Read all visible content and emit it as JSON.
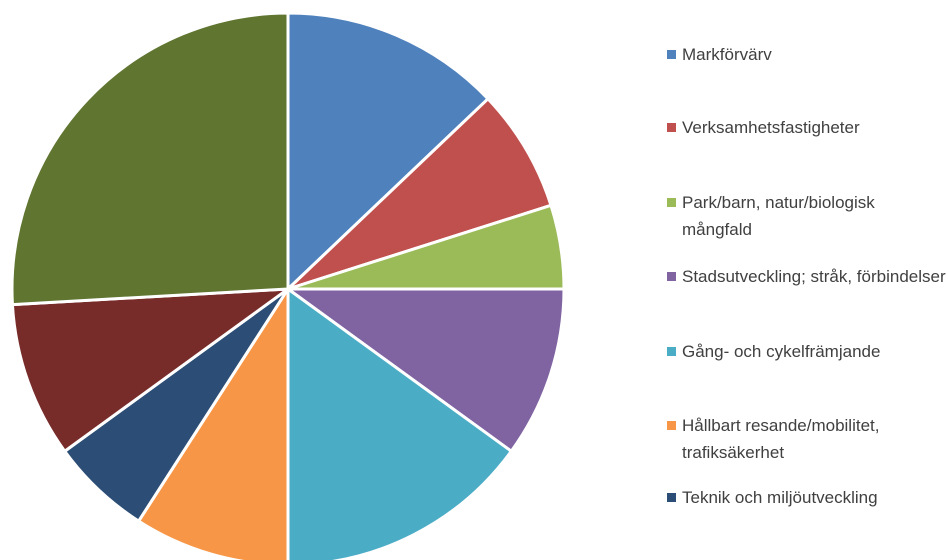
{
  "chart_data": {
    "type": "pie",
    "categories": [
      "Markförvärv",
      "Verksamhetsfastigheter",
      "Park/barn, natur/biologisk mångfald",
      "Stadsutveckling; stråk, förbindelser",
      "Gång- och cykelfrämjande",
      "Hållbart resande/mobilitet, trafiksäkerhet",
      "Teknik och miljöutveckling",
      null,
      null
    ],
    "values": [
      12.9,
      7.2,
      4.9,
      10.0,
      15.0,
      9.1,
      5.9,
      9.1,
      25.9
    ],
    "colors": [
      "#4f81bd",
      "#c0504d",
      "#9bbb59",
      "#8064a2",
      "#4bacc6",
      "#f79646",
      "#2c4d75",
      "#772c2a",
      "#5f7530"
    ]
  }
}
